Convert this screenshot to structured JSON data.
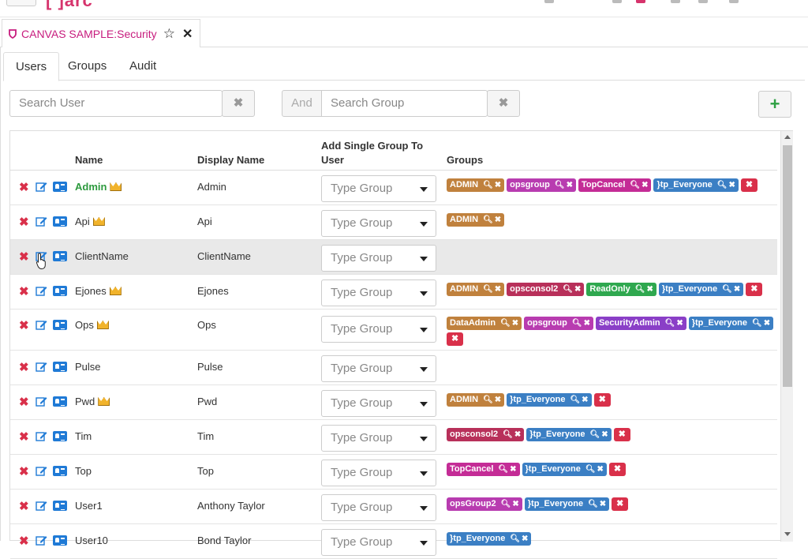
{
  "app": {
    "logo": "[ ]arc"
  },
  "doc_tab": {
    "title": "CANVAS SAMPLE:Security",
    "star": "☆",
    "close": "✕"
  },
  "tabs": [
    {
      "label": "Users"
    },
    {
      "label": "Groups"
    },
    {
      "label": "Audit"
    }
  ],
  "search_user": {
    "placeholder": "Search User",
    "clear": "✖"
  },
  "search_group": {
    "and_label": "And",
    "placeholder": "Search Group",
    "clear": "✖"
  },
  "add_button": {
    "label": "+"
  },
  "columns": {
    "name": "Name",
    "display_name": "Display Name",
    "add_group_line1": "Add Single Group To",
    "add_group_line2": "User",
    "groups": "Groups"
  },
  "select_placeholder": "Type Group",
  "colors": {
    "admin": "#c0813d",
    "opsgroup": "#b83cb0",
    "topcancel": "#c42c96",
    "everyone": "#3b7fc4",
    "opsconsol2": "#b8305a",
    "readonly": "#2fa84f",
    "securityadmin": "#8a3fc7",
    "dataadmin": "#c0813d",
    "opsGroup2": "#b83cb0",
    "remove": "#d9304a"
  },
  "rows": [
    {
      "name": "Admin",
      "display": "Admin",
      "crown": true,
      "green": true,
      "groups": [
        "ADMIN",
        "opsgroup",
        "TopCancel",
        "}tp_Everyone"
      ]
    },
    {
      "name": "Api",
      "display": "Api",
      "crown": true,
      "groups": [
        "ADMIN"
      ]
    },
    {
      "name": "ClientName",
      "display": "ClientName",
      "crown": false,
      "groups": []
    },
    {
      "name": "Ejones",
      "display": "Ejones",
      "crown": true,
      "groups": [
        "ADMIN",
        "opsconsol2",
        "ReadOnly",
        "}tp_Everyone"
      ]
    },
    {
      "name": "Ops",
      "display": "Ops",
      "crown": true,
      "groups": [
        "DataAdmin",
        "opsgroup",
        "SecurityAdmin",
        "}tp_Everyone"
      ]
    },
    {
      "name": "Pulse",
      "display": "Pulse",
      "crown": false,
      "groups": []
    },
    {
      "name": "Pwd",
      "display": "Pwd",
      "crown": true,
      "groups": [
        "ADMIN",
        "}tp_Everyone"
      ]
    },
    {
      "name": "Tim",
      "display": "Tim",
      "crown": false,
      "groups": [
        "opsconsol2",
        "}tp_Everyone"
      ]
    },
    {
      "name": "Top",
      "display": "Top",
      "crown": false,
      "groups": [
        "TopCancel",
        "}tp_Everyone"
      ]
    },
    {
      "name": "User1",
      "display": "Anthony Taylor",
      "crown": false,
      "groups": [
        "opsGroup2",
        "}tp_Everyone"
      ]
    },
    {
      "name": "User10",
      "display": "Bond Taylor",
      "crown": false,
      "groups": [
        "}tp_Everyone"
      ]
    }
  ]
}
